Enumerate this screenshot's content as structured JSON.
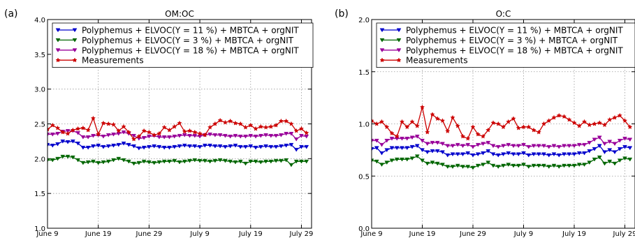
{
  "chart_data": [
    {
      "type": "line",
      "panel_label": "(a)",
      "title": "OM:OC",
      "xlabel": "",
      "ylabel": "",
      "xlim": [
        "June 9",
        "July 31"
      ],
      "ylim": [
        1.0,
        4.0
      ],
      "yticks": [
        "1.0",
        "1.5",
        "2.0",
        "2.5",
        "3.0",
        "3.5",
        "4.0"
      ],
      "xticks": [
        "June 9",
        "June 19",
        "June 29",
        "July 9",
        "July 19",
        "July 29"
      ],
      "grid": true,
      "legend_position": "top",
      "x_start": "June 9",
      "x_step_days": 1,
      "series": [
        {
          "name": "Polyphemus + ELVOC(Y = 11 %) + MBTCA + orgNIT",
          "color": "#0000cc",
          "marker": "triangle-down",
          "values": [
            2.2,
            2.19,
            2.21,
            2.25,
            2.24,
            2.25,
            2.22,
            2.16,
            2.16,
            2.18,
            2.19,
            2.17,
            2.18,
            2.19,
            2.2,
            2.22,
            2.2,
            2.18,
            2.15,
            2.16,
            2.17,
            2.18,
            2.17,
            2.16,
            2.16,
            2.17,
            2.18,
            2.19,
            2.18,
            2.18,
            2.17,
            2.19,
            2.19,
            2.18,
            2.18,
            2.17,
            2.18,
            2.19,
            2.17,
            2.17,
            2.18,
            2.16,
            2.17,
            2.18,
            2.17,
            2.17,
            2.18,
            2.19,
            2.2,
            2.13,
            2.17,
            2.17
          ]
        },
        {
          "name": "Polyphemus + ELVOC(Y =   3 %) + MBTCA + orgNIT",
          "color": "#006600",
          "marker": "triangle-down",
          "values": [
            1.98,
            1.98,
            2.0,
            2.03,
            2.03,
            2.02,
            1.98,
            1.94,
            1.95,
            1.96,
            1.94,
            1.95,
            1.96,
            1.98,
            2.0,
            1.98,
            1.96,
            1.93,
            1.94,
            1.96,
            1.95,
            1.94,
            1.95,
            1.96,
            1.96,
            1.97,
            1.95,
            1.96,
            1.97,
            1.98,
            1.97,
            1.97,
            1.96,
            1.97,
            1.98,
            1.97,
            1.96,
            1.95,
            1.96,
            1.93,
            1.96,
            1.96,
            1.95,
            1.96,
            1.96,
            1.97,
            1.97,
            1.98,
            1.91,
            1.96,
            1.96,
            1.96
          ]
        },
        {
          "name": "Polyphemus + ELVOC(Y = 18 %) + MBTCA + orgNIT",
          "color": "#990099",
          "marker": "triangle-down",
          "values": [
            2.35,
            2.35,
            2.36,
            2.39,
            2.4,
            2.4,
            2.37,
            2.31,
            2.31,
            2.33,
            2.34,
            2.32,
            2.34,
            2.35,
            2.36,
            2.38,
            2.36,
            2.33,
            2.29,
            2.3,
            2.32,
            2.33,
            2.31,
            2.31,
            2.31,
            2.32,
            2.33,
            2.34,
            2.33,
            2.33,
            2.32,
            2.34,
            2.35,
            2.34,
            2.34,
            2.33,
            2.32,
            2.33,
            2.32,
            2.32,
            2.33,
            2.32,
            2.33,
            2.34,
            2.33,
            2.33,
            2.34,
            2.36,
            2.36,
            2.28,
            2.33,
            2.32
          ]
        },
        {
          "name": "Measurements",
          "color": "#cc0000",
          "marker": "star",
          "values": [
            2.42,
            2.48,
            2.44,
            2.38,
            2.36,
            2.41,
            2.43,
            2.44,
            2.41,
            2.58,
            2.35,
            2.51,
            2.5,
            2.49,
            2.4,
            2.46,
            2.38,
            2.28,
            2.32,
            2.4,
            2.38,
            2.34,
            2.36,
            2.45,
            2.41,
            2.46,
            2.51,
            2.39,
            2.4,
            2.38,
            2.36,
            2.34,
            2.45,
            2.5,
            2.55,
            2.52,
            2.54,
            2.51,
            2.5,
            2.45,
            2.48,
            2.43,
            2.46,
            2.45,
            2.46,
            2.48,
            2.54,
            2.54,
            2.5,
            2.4,
            2.43,
            2.37
          ]
        }
      ]
    },
    {
      "type": "line",
      "panel_label": "(b)",
      "title": "O:C",
      "xlabel": "",
      "ylabel": "",
      "xlim": [
        "June 9",
        "July 31"
      ],
      "ylim": [
        0.0,
        2.0
      ],
      "yticks": [
        "0.0",
        "0.5",
        "1.0",
        "1.5",
        "2.0"
      ],
      "xticks": [
        "June 9",
        "June 19",
        "June 29",
        "July 9",
        "July 19",
        "July 29"
      ],
      "grid": true,
      "legend_position": "top",
      "x_start": "June 9",
      "x_step_days": 1,
      "series": [
        {
          "name": "Polyphemus + ELVOC(Y = 11 %) + MBTCA + orgNIT",
          "color": "#0000cc",
          "marker": "triangle-down",
          "values": [
            0.76,
            0.77,
            0.72,
            0.75,
            0.77,
            0.77,
            0.77,
            0.77,
            0.78,
            0.79,
            0.75,
            0.73,
            0.74,
            0.74,
            0.73,
            0.7,
            0.71,
            0.71,
            0.71,
            0.72,
            0.7,
            0.71,
            0.72,
            0.74,
            0.71,
            0.7,
            0.71,
            0.72,
            0.71,
            0.71,
            0.72,
            0.7,
            0.71,
            0.71,
            0.71,
            0.7,
            0.71,
            0.7,
            0.71,
            0.71,
            0.71,
            0.72,
            0.72,
            0.74,
            0.76,
            0.79,
            0.73,
            0.75,
            0.73,
            0.76,
            0.78,
            0.77
          ]
        },
        {
          "name": "Polyphemus + ELVOC(Y =   3 %) + MBTCA + orgNIT",
          "color": "#006600",
          "marker": "triangle-down",
          "values": [
            0.65,
            0.64,
            0.61,
            0.63,
            0.65,
            0.66,
            0.66,
            0.66,
            0.67,
            0.69,
            0.65,
            0.62,
            0.63,
            0.62,
            0.61,
            0.59,
            0.59,
            0.6,
            0.59,
            0.59,
            0.58,
            0.6,
            0.61,
            0.63,
            0.6,
            0.59,
            0.6,
            0.61,
            0.6,
            0.6,
            0.61,
            0.59,
            0.6,
            0.6,
            0.6,
            0.59,
            0.6,
            0.59,
            0.6,
            0.6,
            0.6,
            0.61,
            0.61,
            0.63,
            0.66,
            0.68,
            0.62,
            0.64,
            0.62,
            0.65,
            0.67,
            0.66
          ]
        },
        {
          "name": "Polyphemus + ELVOC(Y = 18 %) + MBTCA + orgNIT",
          "color": "#990099",
          "marker": "triangle-down",
          "values": [
            0.84,
            0.84,
            0.8,
            0.84,
            0.86,
            0.86,
            0.86,
            0.86,
            0.87,
            0.88,
            0.84,
            0.81,
            0.82,
            0.82,
            0.81,
            0.79,
            0.79,
            0.8,
            0.79,
            0.8,
            0.78,
            0.8,
            0.81,
            0.82,
            0.79,
            0.78,
            0.79,
            0.8,
            0.79,
            0.79,
            0.8,
            0.78,
            0.79,
            0.79,
            0.79,
            0.78,
            0.79,
            0.78,
            0.79,
            0.79,
            0.79,
            0.8,
            0.8,
            0.82,
            0.85,
            0.87,
            0.81,
            0.83,
            0.81,
            0.84,
            0.86,
            0.85
          ]
        },
        {
          "name": "Measurements",
          "color": "#cc0000",
          "marker": "star",
          "values": [
            1.03,
            1.0,
            1.02,
            0.97,
            0.91,
            0.88,
            1.02,
            0.97,
            1.02,
            0.98,
            1.16,
            0.92,
            1.09,
            1.05,
            1.03,
            0.93,
            1.06,
            0.98,
            0.88,
            0.86,
            0.97,
            0.9,
            0.88,
            0.94,
            1.01,
            1.0,
            0.97,
            1.02,
            1.05,
            0.96,
            0.97,
            0.97,
            0.94,
            0.92,
            1.0,
            1.03,
            1.06,
            1.08,
            1.07,
            1.04,
            1.01,
            0.98,
            1.02,
            0.99,
            1.0,
            1.01,
            0.99,
            1.04,
            1.06,
            1.08,
            1.03,
            0.97
          ]
        }
      ]
    }
  ]
}
